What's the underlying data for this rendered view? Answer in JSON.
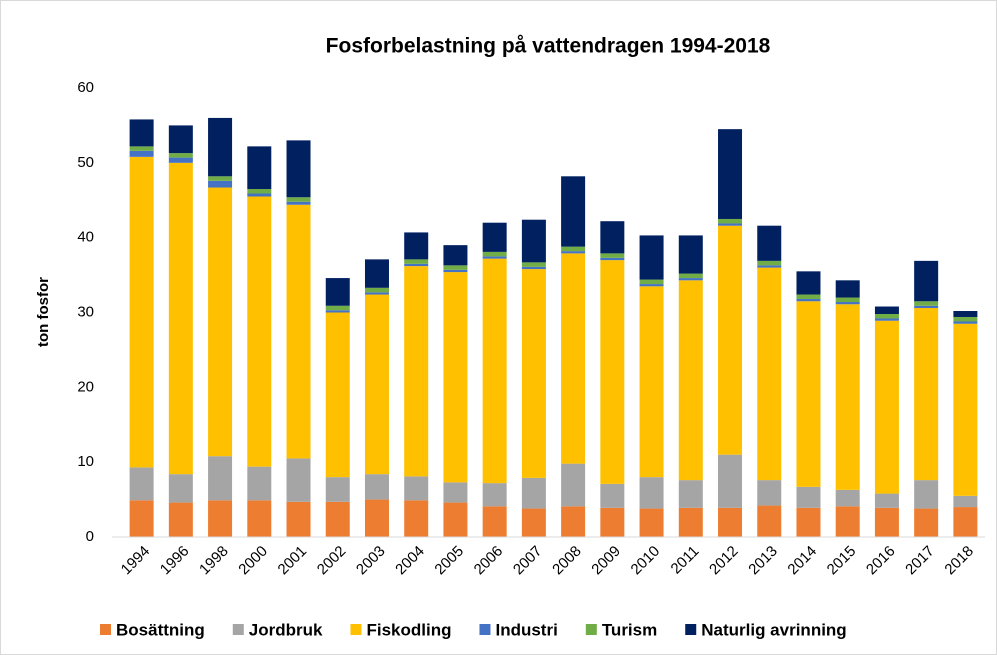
{
  "chart_data": {
    "type": "stacked_bar",
    "title": "Fosforbelastning på vattendragen 1994-2018",
    "y_label": "ton fosfor",
    "categories": [
      "1994",
      "1996",
      "1998",
      "2000",
      "2001",
      "2002",
      "2003",
      "2004",
      "2005",
      "2006",
      "2007",
      "2008",
      "2009",
      "2010",
      "2011",
      "2012",
      "2013",
      "2014",
      "2015",
      "2016",
      "2017",
      "2018"
    ],
    "series": [
      {
        "name": "Bosättning",
        "color": "#ed7d31",
        "values": [
          4.9,
          4.6,
          4.9,
          4.9,
          4.7,
          4.7,
          5.0,
          4.9,
          4.6,
          4.1,
          3.8,
          4.1,
          3.9,
          3.8,
          3.9,
          3.9,
          4.2,
          3.9,
          4.1,
          3.9,
          3.8,
          4.0
        ]
      },
      {
        "name": "Jordbruk",
        "color": "#a5a5a5",
        "values": [
          4.4,
          3.8,
          5.9,
          4.5,
          5.8,
          3.3,
          3.4,
          3.2,
          2.7,
          3.1,
          4.1,
          5.7,
          3.2,
          4.2,
          3.7,
          7.1,
          3.4,
          2.8,
          2.2,
          1.9,
          3.8,
          1.5
        ]
      },
      {
        "name": "Fiskodling",
        "color": "#ffc000",
        "values": [
          41.5,
          41.6,
          35.9,
          36.1,
          33.9,
          22.0,
          24.0,
          28.1,
          28.1,
          30.0,
          27.9,
          28.1,
          29.9,
          25.5,
          26.7,
          30.6,
          28.4,
          24.8,
          24.8,
          23.1,
          23.0,
          23.0
        ]
      },
      {
        "name": "Industri",
        "color": "#4472c4",
        "values": [
          0.8,
          0.7,
          0.9,
          0.4,
          0.4,
          0.3,
          0.3,
          0.3,
          0.3,
          0.3,
          0.3,
          0.3,
          0.3,
          0.3,
          0.3,
          0.3,
          0.3,
          0.3,
          0.3,
          0.3,
          0.3,
          0.3
        ]
      },
      {
        "name": "Turism",
        "color": "#70ad47",
        "values": [
          0.6,
          0.6,
          0.6,
          0.6,
          0.6,
          0.6,
          0.6,
          0.6,
          0.6,
          0.6,
          0.6,
          0.6,
          0.6,
          0.6,
          0.6,
          0.6,
          0.6,
          0.6,
          0.6,
          0.6,
          0.6,
          0.6
        ]
      },
      {
        "name": "Naturlig avrinning",
        "color": "#002060",
        "values": [
          3.6,
          3.7,
          7.8,
          5.7,
          7.6,
          3.7,
          3.8,
          3.6,
          2.7,
          3.9,
          5.7,
          9.4,
          4.3,
          5.9,
          5.1,
          12.0,
          4.7,
          3.1,
          2.3,
          1.0,
          5.4,
          0.8
        ]
      }
    ],
    "ylim": [
      0,
      60
    ],
    "yticks": [
      0,
      10,
      20,
      30,
      40,
      50,
      60
    ],
    "grid": false,
    "legend": "bottom"
  }
}
